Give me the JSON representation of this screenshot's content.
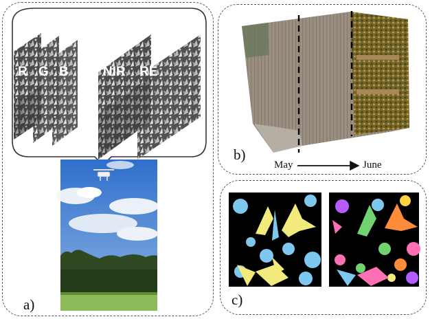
{
  "panels": {
    "a": {
      "label": "a)",
      "bands": [
        "R",
        "G",
        "B",
        "NIR",
        "RE"
      ]
    },
    "b": {
      "label": "b)",
      "timeline": {
        "start": "May",
        "end": "June"
      }
    },
    "c": {
      "label": "c)"
    }
  },
  "colors": {
    "border": "#555555",
    "sky": "#3f7fd0",
    "field_early": "#9c8f80",
    "field_late": "#8a6d2c",
    "segment_colors": [
      "#7ec8f0",
      "#f2ea7a",
      "#ff6fb4",
      "#ff8c3a",
      "#6fd36f",
      "#b45cff",
      "#ffd23f"
    ]
  },
  "icons": [
    "drone-icon",
    "arrow-right-icon"
  ]
}
